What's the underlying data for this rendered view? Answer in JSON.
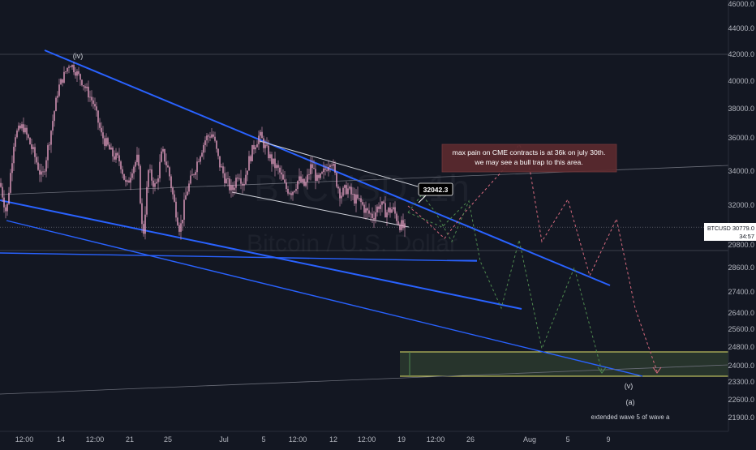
{
  "chart_data": {
    "type": "candlestick",
    "watermark": {
      "ticker": "BTCUSD, 1h",
      "name": "Bitcoin / U.S. Dollar"
    },
    "price_axis": {
      "range": [
        20600,
        46000
      ],
      "ticks": [
        {
          "label": "46000.0",
          "value": 46000
        },
        {
          "label": "44000.0",
          "value": 44000
        },
        {
          "label": "42000.0",
          "value": 42000
        },
        {
          "label": "40000.0",
          "value": 40000
        },
        {
          "label": "38000.0",
          "value": 38000
        },
        {
          "label": "36000.0",
          "value": 36000
        },
        {
          "label": "34000.0",
          "value": 34000
        },
        {
          "label": "32000.0",
          "value": 32000
        },
        {
          "label": "29800.0",
          "value": 29800
        },
        {
          "label": "28600.0",
          "value": 28600
        },
        {
          "label": "27400.0",
          "value": 27400
        },
        {
          "label": "26400.0",
          "value": 26400
        },
        {
          "label": "25600.0",
          "value": 25600
        },
        {
          "label": "24800.0",
          "value": 24800
        },
        {
          "label": "24000.0",
          "value": 24000
        },
        {
          "label": "23300.0",
          "value": 23300
        },
        {
          "label": "22600.0",
          "value": 22600
        },
        {
          "label": "21900.0",
          "value": 21900
        }
      ]
    },
    "time_axis": {
      "ticks": [
        "12:00",
        "14",
        "12:00",
        "21",
        "25",
        "Jul",
        "5",
        "12:00",
        "12",
        "12:00",
        "19",
        "12:00",
        "26",
        "Aug",
        "5",
        "9"
      ]
    },
    "last_price": {
      "symbol": "BTCUSD",
      "price": "30779.0",
      "countdown": "34:57",
      "value": 30779
    },
    "horizontal_levels": [
      42000,
      29500
    ],
    "series": [
      {
        "name": "BTCUSD",
        "anchors": [
          [
            0,
            33300
          ],
          [
            8,
            31500
          ],
          [
            18,
            36200
          ],
          [
            28,
            36800
          ],
          [
            42,
            35000
          ],
          [
            52,
            33500
          ],
          [
            62,
            36200
          ],
          [
            72,
            39500
          ],
          [
            86,
            41400
          ],
          [
            100,
            40100
          ],
          [
            115,
            38400
          ],
          [
            125,
            36200
          ],
          [
            138,
            35000
          ],
          [
            148,
            34600
          ],
          [
            156,
            33000
          ],
          [
            163,
            34200
          ],
          [
            170,
            34800
          ],
          [
            176,
            30000
          ],
          [
            183,
            34000
          ],
          [
            192,
            33000
          ],
          [
            200,
            35200
          ],
          [
            208,
            34000
          ],
          [
            214,
            32300
          ],
          [
            222,
            30600
          ],
          [
            230,
            32800
          ],
          [
            238,
            33800
          ],
          [
            246,
            35000
          ],
          [
            254,
            36000
          ],
          [
            262,
            36300
          ],
          [
            270,
            34500
          ],
          [
            278,
            33500
          ],
          [
            286,
            32800
          ],
          [
            294,
            34000
          ],
          [
            300,
            33200
          ],
          [
            306,
            34500
          ],
          [
            313,
            35500
          ],
          [
            320,
            36200
          ],
          [
            328,
            35300
          ],
          [
            336,
            34500
          ],
          [
            344,
            34000
          ],
          [
            352,
            33000
          ],
          [
            360,
            32800
          ],
          [
            368,
            33500
          ],
          [
            376,
            33100
          ],
          [
            384,
            34400
          ],
          [
            392,
            33300
          ],
          [
            400,
            34000
          ],
          [
            408,
            34800
          ],
          [
            414,
            33500
          ],
          [
            420,
            32600
          ],
          [
            428,
            33000
          ],
          [
            436,
            32400
          ],
          [
            444,
            32200
          ],
          [
            452,
            31600
          ],
          [
            460,
            31400
          ],
          [
            468,
            32100
          ],
          [
            476,
            31600
          ],
          [
            484,
            31800
          ],
          [
            492,
            31000
          ],
          [
            500,
            30600
          ]
        ]
      }
    ],
    "annotations": [
      {
        "label": "(iv)"
      },
      {
        "label": "32042.3"
      },
      {
        "label": "max pain on CME contracts is at 36k on july 30th."
      },
      {
        "label": "we may see a bull trap to this area."
      },
      {
        "label": "(v)"
      },
      {
        "label": "(a)"
      },
      {
        "label": "extended wave 5 of wave a"
      }
    ],
    "colors": {
      "background": "#131722",
      "candle": "#e8a1c4",
      "trendline": "#2962ff",
      "zone_border": "#e3e36b",
      "zone_fill": "#2b3a2e",
      "projection_red": "#d96b7f",
      "projection_green": "#4f8a4f",
      "note_bg": "#5b2a2e"
    },
    "grid": false
  }
}
